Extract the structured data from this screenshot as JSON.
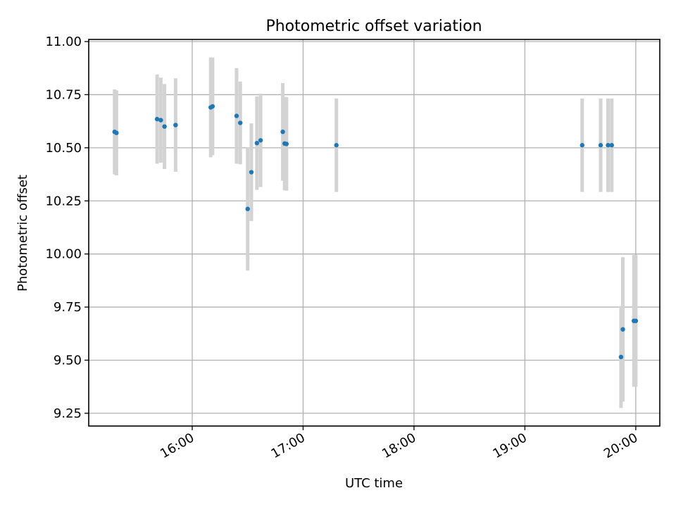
{
  "chart_data": {
    "type": "scatter",
    "title": "Photometric offset variation",
    "xlabel": "UTC time",
    "ylabel": "Photometric offset",
    "x_ticks": [
      "16:00",
      "17:00",
      "18:00",
      "19:00",
      "20:00"
    ],
    "y_ticks": [
      "9.25",
      "9.50",
      "9.75",
      "10.00",
      "10.25",
      "10.50",
      "10.75",
      "11.00"
    ],
    "xlim": [
      "15:04",
      "20:13"
    ],
    "ylim": [
      9.19,
      11.01
    ],
    "grid": true,
    "colors": {
      "points": "#1f77b4",
      "errorbars": "#d3d3d3",
      "grid": "#b0b0b0"
    },
    "points": [
      {
        "x": "15:18",
        "y": 10.575,
        "err": 0.2
      },
      {
        "x": "15:19",
        "y": 10.57,
        "err": 0.2
      },
      {
        "x": "15:41",
        "y": 10.635,
        "err": 0.21
      },
      {
        "x": "15:43",
        "y": 10.63,
        "err": 0.2
      },
      {
        "x": "15:45",
        "y": 10.6,
        "err": 0.2
      },
      {
        "x": "15:51",
        "y": 10.607,
        "err": 0.22
      },
      {
        "x": "16:10",
        "y": 10.69,
        "err": 0.235
      },
      {
        "x": "16:11",
        "y": 10.695,
        "err": 0.23
      },
      {
        "x": "16:24",
        "y": 10.65,
        "err": 0.225
      },
      {
        "x": "16:26",
        "y": 10.617,
        "err": 0.195
      },
      {
        "x": "16:30",
        "y": 10.212,
        "err": 0.29
      },
      {
        "x": "16:32",
        "y": 10.385,
        "err": 0.23
      },
      {
        "x": "16:35",
        "y": 10.522,
        "err": 0.22
      },
      {
        "x": "16:37",
        "y": 10.535,
        "err": 0.22
      },
      {
        "x": "16:49",
        "y": 10.575,
        "err": 0.23
      },
      {
        "x": "16:50",
        "y": 10.52,
        "err": 0.22
      },
      {
        "x": "16:51",
        "y": 10.518,
        "err": 0.22
      },
      {
        "x": "17:18",
        "y": 10.512,
        "err": 0.22
      },
      {
        "x": "19:31",
        "y": 10.512,
        "err": 0.22
      },
      {
        "x": "19:41",
        "y": 10.512,
        "err": 0.22
      },
      {
        "x": "19:45",
        "y": 10.512,
        "err": 0.22
      },
      {
        "x": "19:47",
        "y": 10.512,
        "err": 0.22
      },
      {
        "x": "19:52",
        "y": 9.515,
        "err": 0.24
      },
      {
        "x": "19:53",
        "y": 9.645,
        "err": 0.34
      },
      {
        "x": "19:59",
        "y": 9.685,
        "err": 0.31
      },
      {
        "x": "20:00",
        "y": 9.685,
        "err": 0.31
      }
    ]
  }
}
